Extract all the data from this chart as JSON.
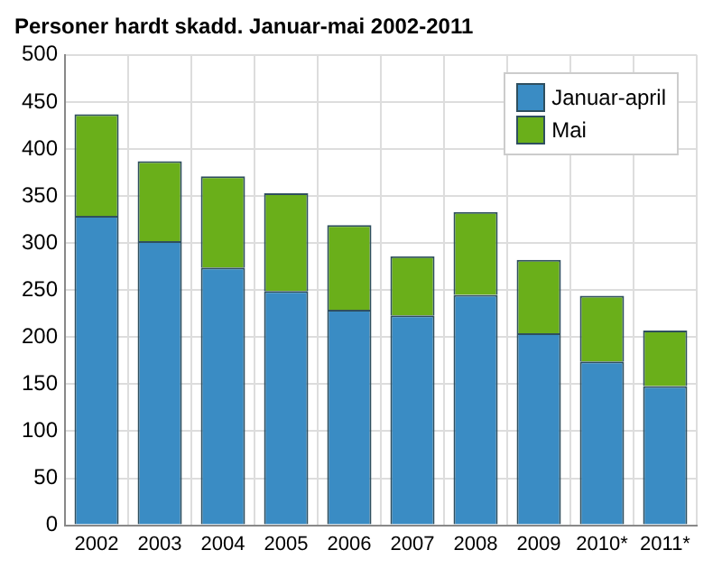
{
  "chart_data": {
    "type": "bar",
    "title": "Personer hardt skadd. Januar-mai 2002-2011",
    "categories": [
      "2002",
      "2003",
      "2004",
      "2005",
      "2006",
      "2007",
      "2008",
      "2009",
      "2010*",
      "2011*"
    ],
    "stacked": true,
    "series": [
      {
        "name": "Januar-april",
        "color": "#3a8cc4",
        "values": [
          329,
          302,
          274,
          249,
          229,
          223,
          245,
          204,
          174,
          148
        ]
      },
      {
        "name": "Mai",
        "color": "#6aaf1a",
        "values": [
          108,
          85,
          97,
          104,
          90,
          63,
          88,
          78,
          70,
          59
        ]
      }
    ],
    "ylim": [
      0,
      500
    ],
    "yticks": [
      0,
      50,
      100,
      150,
      200,
      250,
      300,
      350,
      400,
      450,
      500
    ],
    "grid": true,
    "legend": "top right"
  }
}
